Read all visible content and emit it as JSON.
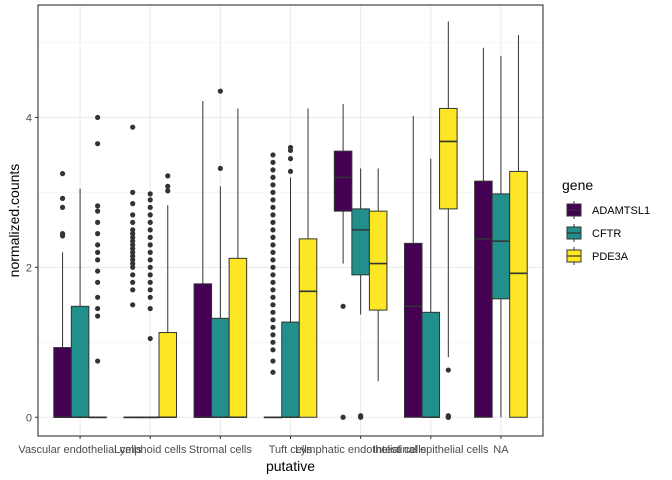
{
  "chart_data": {
    "type": "boxplot",
    "title": "",
    "xlabel": "putative",
    "ylabel": "normalized.counts",
    "ylim": [
      -0.25,
      5.5
    ],
    "yticks": [
      0,
      2,
      4
    ],
    "grid": true,
    "legend_position": "right",
    "legend_title": "gene",
    "categories": [
      "Vascular endothelial cells",
      "Lymphoid cells",
      "Stromal cells",
      "Tuft cells",
      "Lymphatic endothelial cells",
      "Intestinal epithelial cells",
      "NA"
    ],
    "series": [
      {
        "name": "ADAMTSL1",
        "color": "#440154",
        "boxes": [
          {
            "min": 0,
            "q1": 0,
            "median": 0,
            "q3": 0.93,
            "max": 2.2,
            "outliers": [
              2.42,
              2.45,
              2.8,
              2.92,
              3.25
            ]
          },
          {
            "min": 0,
            "q1": 0,
            "median": 0,
            "q3": 0,
            "max": 0,
            "outliers": [
              1.5,
              1.7,
              1.8,
              1.9,
              2.0,
              2.05,
              2.1,
              2.15,
              2.2,
              2.25,
              2.3,
              2.35,
              2.4,
              2.45,
              2.5,
              2.6,
              2.7,
              2.85,
              3.0,
              3.87
            ]
          },
          {
            "min": 0,
            "q1": 0,
            "median": 0,
            "q3": 1.78,
            "max": 4.22,
            "outliers": []
          },
          {
            "min": 0,
            "q1": 0,
            "median": 0,
            "q3": 0,
            "max": 0,
            "outliers": [
              0.6,
              0.75,
              0.9,
              1.0,
              1.1,
              1.2,
              1.3,
              1.4,
              1.5,
              1.6,
              1.7,
              1.8,
              1.9,
              2.0,
              2.1,
              2.2,
              2.3,
              2.4,
              2.5,
              2.6,
              2.7,
              2.8,
              2.9,
              3.0,
              3.1,
              3.2,
              3.3,
              3.4,
              3.5
            ]
          },
          {
            "min": 2.05,
            "q1": 2.75,
            "median": 3.2,
            "q3": 3.55,
            "max": 4.18,
            "outliers": [
              0.0,
              1.48
            ]
          },
          {
            "min": 0,
            "q1": 0,
            "median": 1.48,
            "q3": 2.32,
            "max": 4.02,
            "outliers": []
          },
          {
            "min": 0,
            "q1": 0,
            "median": 2.38,
            "q3": 3.15,
            "max": 4.93,
            "outliers": []
          }
        ]
      },
      {
        "name": "CFTR",
        "color": "#21908C",
        "boxes": [
          {
            "min": 0,
            "q1": 0,
            "median": 0,
            "q3": 1.48,
            "max": 3.05,
            "outliers": []
          },
          {
            "min": 0,
            "q1": 0,
            "median": 0,
            "q3": 0,
            "max": 0,
            "outliers": [
              1.05,
              1.45,
              1.6,
              1.7,
              1.8,
              1.9,
              2.0,
              2.1,
              2.2,
              2.3,
              2.4,
              2.5,
              2.6,
              2.7,
              2.8,
              2.9,
              2.98
            ]
          },
          {
            "min": 0,
            "q1": 0,
            "median": 0,
            "q3": 1.32,
            "max": 3.08,
            "outliers": [
              3.32,
              4.35
            ]
          },
          {
            "min": 0,
            "q1": 0,
            "median": 0,
            "q3": 1.27,
            "max": 3.2,
            "outliers": [
              3.28,
              3.45,
              3.56,
              3.6
            ]
          },
          {
            "min": 1.37,
            "q1": 1.9,
            "median": 2.5,
            "q3": 2.78,
            "max": 3.32,
            "outliers": [
              0.0,
              0.02
            ]
          },
          {
            "min": 0,
            "q1": 0,
            "median": 0,
            "q3": 1.4,
            "max": 3.45,
            "outliers": []
          },
          {
            "min": 0,
            "q1": 1.58,
            "median": 2.35,
            "q3": 2.98,
            "max": 4.82,
            "outliers": []
          }
        ]
      },
      {
        "name": "PDE3A",
        "color": "#FDE725",
        "boxes": [
          {
            "min": 0,
            "q1": 0,
            "median": 0,
            "q3": 0,
            "max": 0,
            "outliers": [
              0.75,
              1.35,
              1.45,
              1.6,
              1.8,
              1.95,
              2.1,
              2.2,
              2.3,
              2.45,
              2.6,
              2.75,
              2.82,
              3.65,
              4.0
            ]
          },
          {
            "min": 0,
            "q1": 0,
            "median": 0,
            "q3": 1.13,
            "max": 2.83,
            "outliers": [
              3.02,
              3.08,
              3.22
            ]
          },
          {
            "min": 0,
            "q1": 0,
            "median": 0,
            "q3": 2.12,
            "max": 4.12,
            "outliers": []
          },
          {
            "min": 0,
            "q1": 0,
            "median": 1.68,
            "q3": 2.38,
            "max": 4.12,
            "outliers": []
          },
          {
            "min": 0.48,
            "q1": 1.43,
            "median": 2.05,
            "q3": 2.75,
            "max": 3.32,
            "outliers": []
          },
          {
            "min": 0.8,
            "q1": 2.78,
            "median": 3.68,
            "q3": 4.12,
            "max": 5.28,
            "outliers": [
              0.0,
              0.0,
              0.02,
              0.63
            ]
          },
          {
            "min": 0,
            "q1": 0,
            "median": 1.92,
            "q3": 3.28,
            "max": 5.1,
            "outliers": []
          }
        ]
      }
    ]
  }
}
